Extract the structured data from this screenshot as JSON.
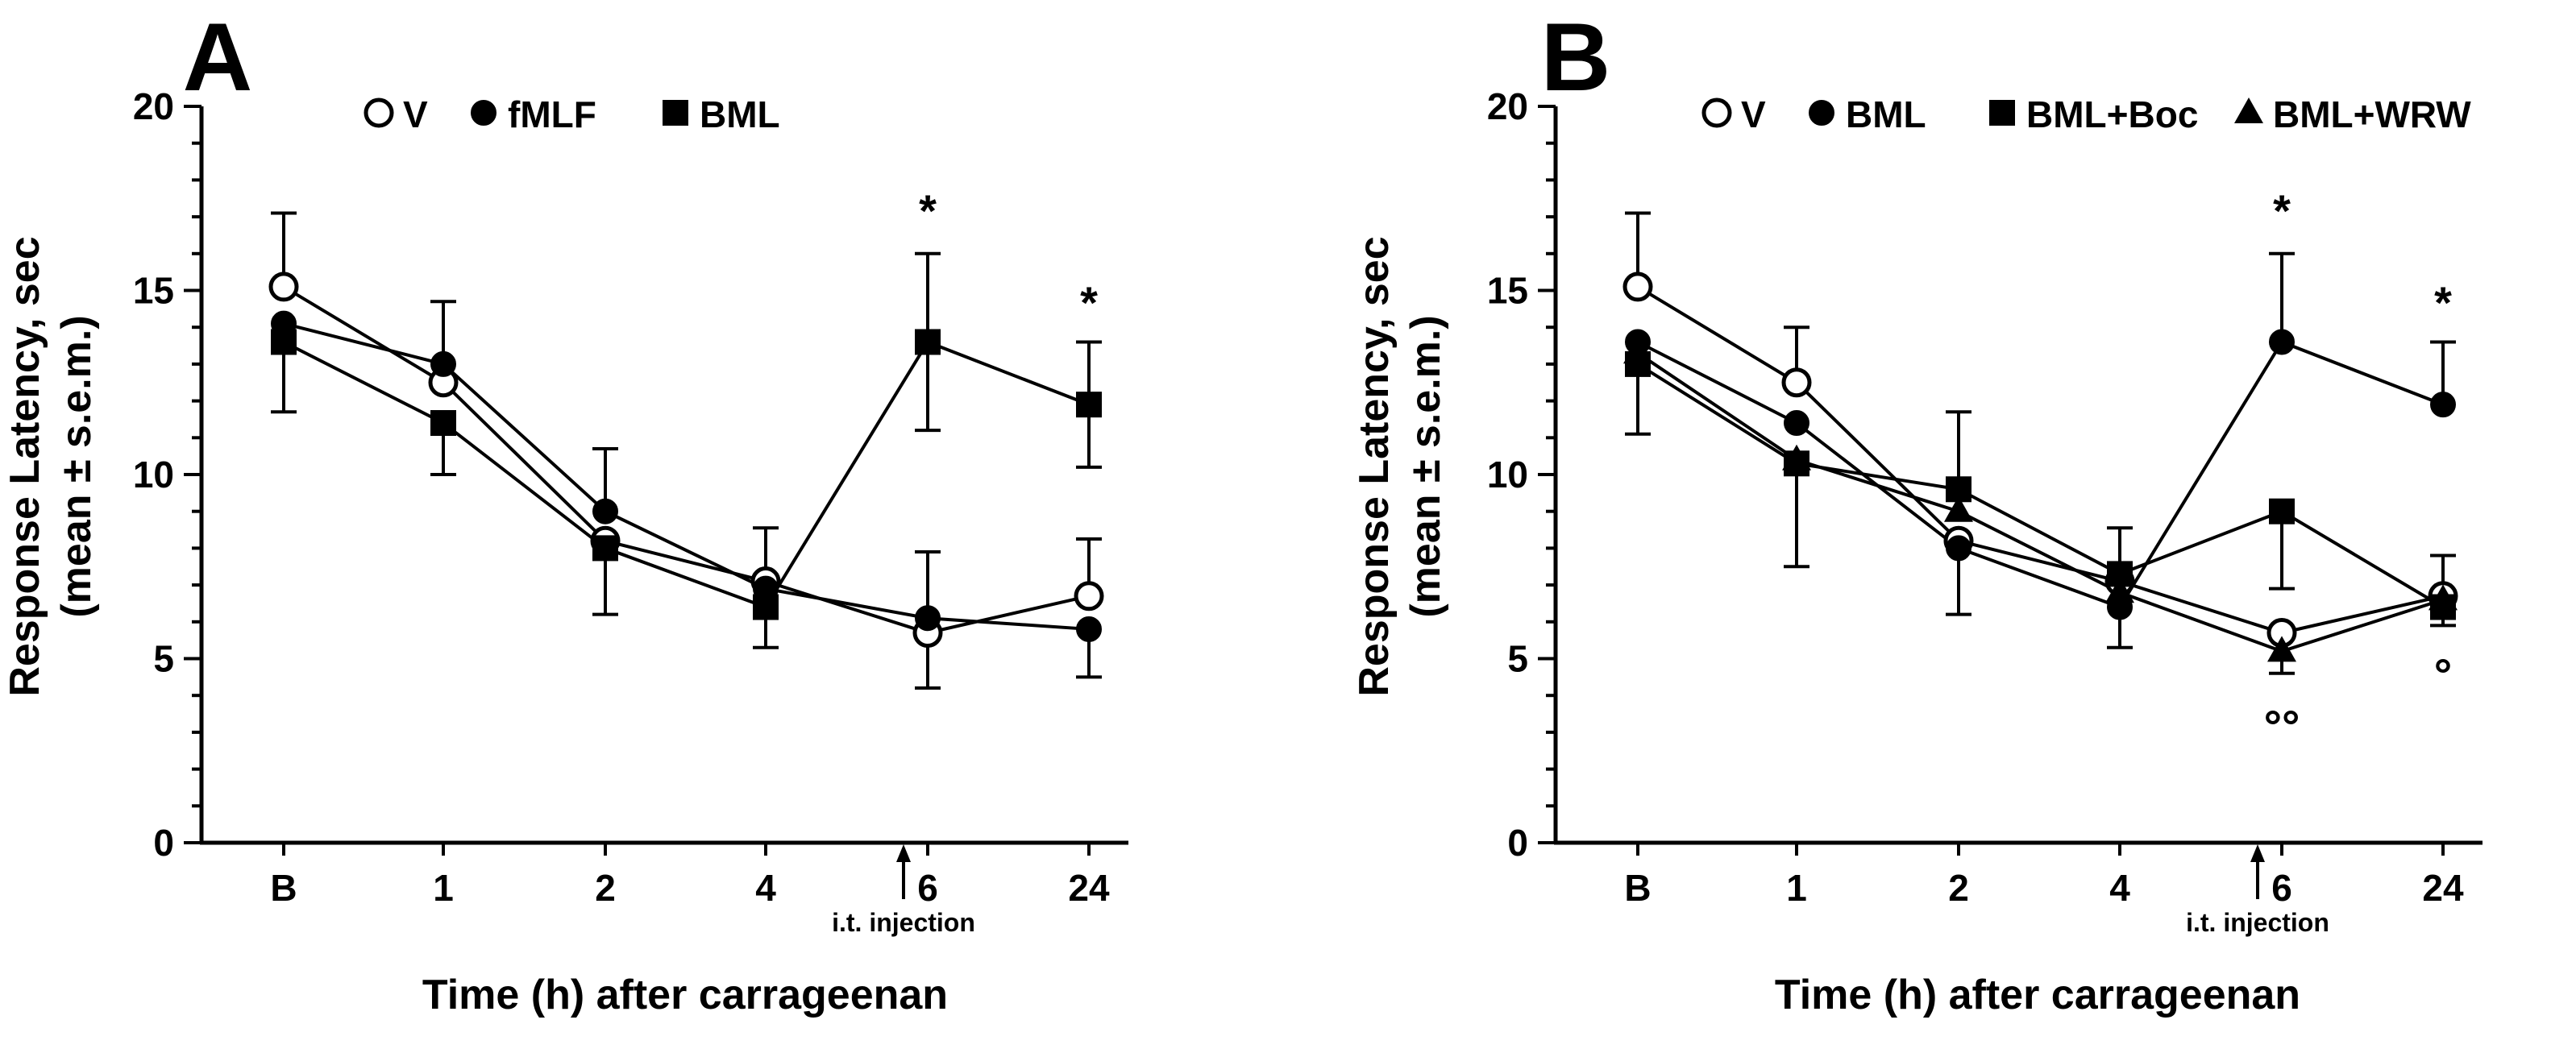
{
  "colors": {
    "ink": "#000000",
    "open": "#ffffff"
  },
  "chart_data": [
    {
      "type": "line",
      "panel_label": "A",
      "xlabel": "Time (h) after carrageenan",
      "ylabel": [
        "Response Latency, sec",
        "(mean ± s.e.m.)"
      ],
      "categories": [
        "B",
        "1",
        "2",
        "4",
        "6",
        "24"
      ],
      "ylim": [
        0,
        20
      ],
      "yticks": [
        "0",
        "5",
        "10",
        "15",
        "20"
      ],
      "grid": false,
      "legend_position": "top",
      "series": [
        {
          "name": "V",
          "marker": "open-circle",
          "values": [
            15.1,
            12.5,
            8.2,
            7.1,
            5.7,
            6.7
          ],
          "err_plus": [
            2.0,
            0,
            0,
            1.45,
            0,
            1.55
          ],
          "err_minus": [
            0,
            0,
            0,
            0,
            1.5,
            0
          ]
        },
        {
          "name": "fMLF",
          "marker": "filled-circle",
          "values": [
            14.1,
            13.0,
            9.0,
            6.9,
            6.1,
            5.8
          ],
          "err_plus": [
            0,
            1.7,
            1.7,
            0,
            1.8,
            0
          ],
          "err_minus": [
            0,
            0,
            0,
            0,
            0,
            1.3
          ]
        },
        {
          "name": "BML",
          "marker": "filled-square",
          "values": [
            13.6,
            11.4,
            8.0,
            6.4,
            13.6,
            11.9
          ],
          "err_plus": [
            0,
            0,
            0,
            0,
            2.4,
            1.7
          ],
          "err_minus": [
            1.9,
            1.4,
            1.8,
            1.1,
            2.4,
            1.7
          ]
        }
      ],
      "annotations": [
        {
          "text": "*",
          "category": "6",
          "y": 17.4
        },
        {
          "text": "*",
          "category": "24",
          "y": 14.9
        },
        {
          "text": "i.t. injection",
          "category": "6"
        }
      ]
    },
    {
      "type": "line",
      "panel_label": "B",
      "xlabel": "Time (h) after carrageenan",
      "ylabel": [
        "Response Latency, sec",
        "(mean ± s.e.m.)"
      ],
      "categories": [
        "B",
        "1",
        "2",
        "4",
        "6",
        "24"
      ],
      "ylim": [
        0,
        20
      ],
      "yticks": [
        "0",
        "5",
        "10",
        "15",
        "20"
      ],
      "grid": false,
      "legend_position": "top",
      "series": [
        {
          "name": "V",
          "marker": "open-circle",
          "values": [
            15.1,
            12.5,
            8.2,
            7.1,
            5.7,
            6.7
          ],
          "err_plus": [
            2.0,
            1.5,
            0,
            1.45,
            0,
            1.1
          ],
          "err_minus": [
            0,
            0,
            0,
            0,
            0,
            0
          ]
        },
        {
          "name": "BML",
          "marker": "filled-circle",
          "values": [
            13.6,
            11.4,
            8.0,
            6.4,
            13.6,
            11.9
          ],
          "err_plus": [
            0,
            0,
            0,
            0,
            2.4,
            1.7
          ],
          "err_minus": [
            0,
            0,
            1.8,
            1.1,
            0,
            0
          ]
        },
        {
          "name": "BML+Boc",
          "marker": "filled-square",
          "values": [
            13.0,
            10.3,
            9.6,
            7.3,
            9.0,
            6.4
          ],
          "err_plus": [
            0,
            0,
            2.1,
            0,
            0,
            0
          ],
          "err_minus": [
            1.9,
            2.8,
            0,
            0,
            2.1,
            0.5
          ]
        },
        {
          "name": "BML+WRW",
          "marker": "filled-triangle",
          "values": [
            13.3,
            10.4,
            9.0,
            6.8,
            5.2,
            6.6
          ],
          "err_plus": [
            0,
            0,
            0,
            0,
            0,
            0
          ],
          "err_minus": [
            0,
            0,
            0,
            0,
            0.6,
            0
          ]
        }
      ],
      "annotations": [
        {
          "text": "*",
          "category": "6",
          "y": 17.4
        },
        {
          "text": "*",
          "category": "24",
          "y": 14.9
        },
        {
          "text": "°°",
          "category": "6",
          "y": 3.4
        },
        {
          "text": "°",
          "category": "24",
          "y": 4.8
        },
        {
          "text": "i.t. injection",
          "category": "6"
        }
      ]
    }
  ]
}
